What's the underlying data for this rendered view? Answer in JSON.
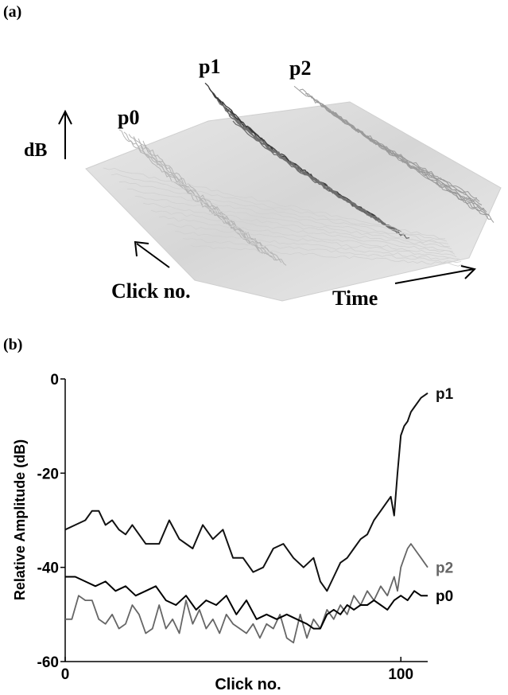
{
  "panels": {
    "a": {
      "label": "(a)",
      "peak_labels": [
        "p0",
        "p1",
        "p2"
      ],
      "z_label": "dB",
      "click_axis_label": "Click no.",
      "time_axis_label": "Time"
    },
    "b": {
      "label": "(b)"
    }
  },
  "chart_data": [
    {
      "type": "surface",
      "description_labels": [
        "p0",
        "p1",
        "p2"
      ],
      "xlabel": "Time",
      "ylabel": "Click no.",
      "zlabel": "dB"
    },
    {
      "type": "line",
      "xlabel": "Click no.",
      "ylabel": "Relative Amplitude (dB)",
      "xlim": [
        0,
        108
      ],
      "ylim": [
        -60,
        0
      ],
      "xticks": [
        0,
        100
      ],
      "yticks": [
        0,
        -20,
        -40,
        -60
      ],
      "series": [
        {
          "name": "p1",
          "color": "#111111",
          "x": [
            0,
            3,
            6,
            8,
            10,
            12,
            14,
            16,
            18,
            20,
            24,
            28,
            31,
            34,
            38,
            41,
            44,
            47,
            50,
            53,
            56,
            59,
            62,
            65,
            68,
            71,
            74,
            76,
            78,
            80,
            82,
            84,
            86,
            88,
            90,
            92,
            94,
            96,
            97,
            98,
            99,
            100,
            101,
            102,
            103,
            104,
            106,
            108
          ],
          "y": [
            -32,
            -31,
            -30,
            -28,
            -28,
            -31,
            -30,
            -32,
            -33,
            -31,
            -35,
            -35,
            -30,
            -34,
            -36,
            -31,
            -34,
            -32,
            -38,
            -38,
            -41,
            -40,
            -36,
            -35,
            -38,
            -40,
            -38,
            -43,
            -45,
            -42,
            -39,
            -38,
            -36,
            -34,
            -33,
            -30,
            -28,
            -26,
            -25,
            -29,
            -20,
            -12,
            -10,
            -9,
            -7,
            -6,
            -4,
            -3
          ]
        },
        {
          "name": "p2",
          "color": "#666666",
          "x": [
            0,
            2,
            4,
            6,
            8,
            10,
            12,
            14,
            16,
            18,
            20,
            22,
            24,
            26,
            28,
            30,
            32,
            34,
            36,
            38,
            40,
            42,
            44,
            46,
            48,
            50,
            52,
            54,
            56,
            58,
            60,
            62,
            64,
            66,
            68,
            70,
            72,
            74,
            76,
            78,
            80,
            82,
            84,
            86,
            88,
            90,
            92,
            94,
            96,
            98,
            99,
            100,
            101,
            102,
            103,
            104,
            105,
            106,
            107,
            108
          ],
          "y": [
            -51,
            -51,
            -46,
            -47,
            -47,
            -51,
            -52,
            -50,
            -53,
            -52,
            -48,
            -50,
            -54,
            -53,
            -48,
            -53,
            -51,
            -54,
            -47,
            -52,
            -49,
            -53,
            -51,
            -54,
            -50,
            -52,
            -53,
            -54,
            -52,
            -55,
            -52,
            -53,
            -50,
            -55,
            -56,
            -50,
            -55,
            -51,
            -53,
            -49,
            -51,
            -48,
            -50,
            -46,
            -48,
            -45,
            -47,
            -44,
            -46,
            -42,
            -45,
            -40,
            -38,
            -36,
            -35,
            -36,
            -37,
            -38,
            -39,
            -40
          ]
        },
        {
          "name": "p0",
          "color": "#000000",
          "x": [
            0,
            3,
            6,
            9,
            12,
            15,
            18,
            21,
            24,
            27,
            30,
            33,
            36,
            39,
            42,
            45,
            48,
            51,
            54,
            57,
            60,
            63,
            66,
            69,
            72,
            74,
            76,
            78,
            80,
            82,
            84,
            86,
            88,
            90,
            92,
            94,
            96,
            98,
            100,
            102,
            104,
            106,
            108
          ],
          "y": [
            -42,
            -42,
            -43,
            -44,
            -43,
            -45,
            -44,
            -46,
            -45,
            -44,
            -47,
            -48,
            -46,
            -49,
            -47,
            -48,
            -46,
            -50,
            -47,
            -51,
            -50,
            -51,
            -50,
            -51,
            -52,
            -53,
            -53,
            -50,
            -49,
            -50,
            -48,
            -49,
            -48,
            -48,
            -47,
            -48,
            -49,
            -47,
            -46,
            -47,
            -45,
            -46,
            -46
          ]
        }
      ]
    }
  ]
}
